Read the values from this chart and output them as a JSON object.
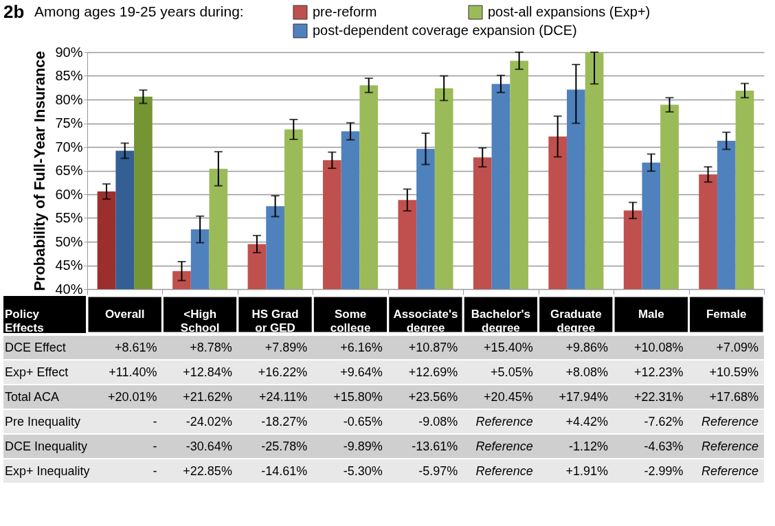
{
  "chart_data": {
    "type": "bar",
    "title": "2b",
    "subtitle": "Among ages 19-25 years during:",
    "ylabel": "Probability of Full-Year Insurance",
    "categories": [
      "Overall",
      "<High School",
      "HS Grad or GED",
      "Some college",
      "Associate's degree",
      "Bachelor's degree",
      "Graduate degree",
      "Male",
      "Female"
    ],
    "series": [
      {
        "name": "pre-reform",
        "color": "#c0504d",
        "colors": [
          "#9b2f2d",
          "#c0504d",
          "#c0504d",
          "#c0504d",
          "#c0504d",
          "#c0504d",
          "#c0504d",
          "#c0504d",
          "#c0504d"
        ],
        "values": [
          60.6,
          43.8,
          49.5,
          67.2,
          58.8,
          67.8,
          72.2,
          56.6,
          64.2
        ],
        "errors": [
          1.6,
          2.0,
          1.8,
          1.7,
          2.3,
          2.0,
          4.3,
          1.7,
          1.6
        ]
      },
      {
        "name": "post-dependent coverage expansion (DCE)",
        "color": "#4f81bd",
        "colors": [
          "#345f95",
          "#4f81bd",
          "#4f81bd",
          "#4f81bd",
          "#4f81bd",
          "#4f81bd",
          "#4f81bd",
          "#4f81bd",
          "#4f81bd"
        ],
        "values": [
          69.2,
          52.6,
          57.5,
          73.3,
          69.6,
          83.3,
          82.1,
          66.7,
          71.3
        ],
        "errors": [
          1.6,
          2.8,
          2.2,
          1.8,
          3.3,
          1.8,
          [
            75.0,
            87.4
          ],
          1.8,
          1.8
        ]
      },
      {
        "name": "post-all expansions (Exp+)",
        "color": "#9bbb59",
        "colors": [
          "#759535",
          "#9bbb59",
          "#9bbb59",
          "#9bbb59",
          "#9bbb59",
          "#9bbb59",
          "#9bbb59",
          "#9bbb59",
          "#9bbb59"
        ],
        "values": [
          80.6,
          65.4,
          73.7,
          83.0,
          82.4,
          88.2,
          90.0,
          78.9,
          81.9
        ],
        "errors": [
          1.4,
          3.6,
          2.1,
          1.5,
          2.6,
          1.8,
          [
            83.3,
            90.0
          ],
          1.5,
          1.5
        ]
      }
    ],
    "ylim": [
      40,
      90
    ],
    "yticks": [
      {
        "value": 40,
        "label": "40%"
      },
      {
        "value": 45,
        "label": "45%"
      },
      {
        "value": 50,
        "label": "50%"
      },
      {
        "value": 55,
        "label": "55%"
      },
      {
        "value": 60,
        "label": "60%"
      },
      {
        "value": 65,
        "label": "65%"
      },
      {
        "value": 70,
        "label": "70%"
      },
      {
        "value": 75,
        "label": "75%"
      },
      {
        "value": 80,
        "label": "80%"
      },
      {
        "value": 85,
        "label": "85%"
      },
      {
        "value": 90,
        "label": "90%"
      }
    ],
    "grid": "y",
    "legend": "top right",
    "annotations": [
      "Policy Effects",
      "DCE Effect",
      "+8.61%",
      "+8.78%",
      "+7.89%",
      "+6.16%",
      "+10.87%",
      "+15.40%",
      "+9.86%",
      "+10.08%",
      "+7.09%",
      "Exp+ Effect",
      "+11.40%",
      "+12.84%",
      "+16.22%",
      "+9.64%",
      "+12.69%",
      "+5.05%",
      "+8.08%",
      "+12.23%",
      "+10.59%",
      "Total ACA",
      "+20.01%",
      "+21.62%",
      "+24.11%",
      "+15.80%",
      "+23.56%",
      "+20.45%",
      "+17.94%",
      "+22.31%",
      "+17.68%",
      "Pre Inequality",
      "-",
      "-24.02%",
      "-18.27%",
      "-0.65%",
      "-9.08%",
      "Reference",
      "+4.42%",
      "-7.62%",
      "Reference",
      "DCE Inequality",
      "-",
      "-30.64%",
      "-25.78%",
      "-9.89%",
      "-13.61%",
      "Reference",
      "-1.12%",
      "-4.63%",
      "Reference",
      "Exp+ Inequality",
      "-",
      "+22.85%",
      "-14.61%",
      "-5.30%",
      "-5.97%",
      "Reference",
      "+1.91%",
      "-2.99%",
      "Reference"
    ]
  }
}
